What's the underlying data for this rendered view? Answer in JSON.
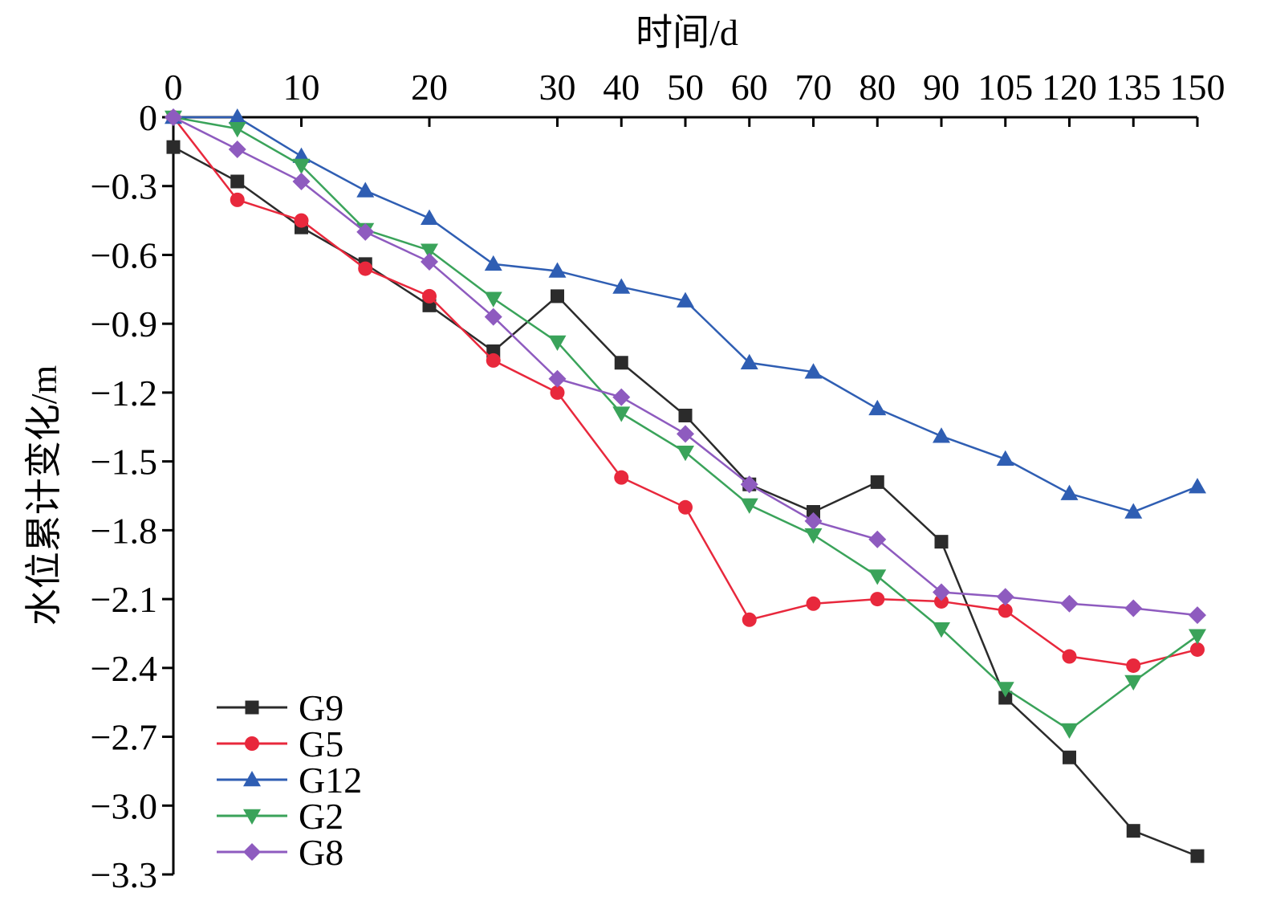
{
  "chart_data": {
    "type": "line",
    "xlabel": "时间/d",
    "ylabel": "水位累计变化/m",
    "x_tick_labels": [
      "0",
      "10",
      "20",
      "30",
      "40",
      "50",
      "60",
      "70",
      "80",
      "90",
      "105",
      "120",
      "135",
      "150"
    ],
    "y_tick_labels": [
      "0",
      "−0.3",
      "−0.6",
      "−0.9",
      "−1.2",
      "−1.5",
      "−1.8",
      "−2.1",
      "−2.4",
      "−2.7",
      "−3.0",
      "−3.3"
    ],
    "y_ticks": [
      0,
      -0.3,
      -0.6,
      -0.9,
      -1.2,
      -1.5,
      -1.8,
      -2.1,
      -2.4,
      -2.7,
      -3.0,
      -3.3
    ],
    "ylim": [
      -3.3,
      0
    ],
    "x_positions": [
      0,
      1,
      2,
      3,
      4,
      5,
      6,
      7,
      8,
      9,
      10,
      11,
      12,
      13,
      14,
      15,
      16
    ],
    "x_index_range": [
      0,
      16
    ],
    "x_tick_index": [
      0,
      2,
      4,
      6,
      7,
      8,
      9,
      10,
      11,
      12,
      13,
      14,
      15,
      16
    ],
    "legend_position": "bottom-left",
    "series": [
      {
        "name": "G9",
        "color": "#2b2b2b",
        "marker": "square",
        "values": [
          -0.13,
          -0.28,
          -0.48,
          -0.64,
          -0.82,
          -1.02,
          -0.78,
          -1.07,
          -1.3,
          -1.6,
          -1.72,
          -1.59,
          -1.85,
          -2.53,
          -2.79,
          -3.11,
          -3.22
        ]
      },
      {
        "name": "G5",
        "color": "#e8283c",
        "marker": "circle",
        "values": [
          0,
          -0.36,
          -0.45,
          -0.66,
          -0.78,
          -1.06,
          -1.2,
          -1.57,
          -1.7,
          -2.19,
          -2.12,
          -2.1,
          -2.11,
          -2.15,
          -2.35,
          -2.39,
          -2.32
        ]
      },
      {
        "name": "G12",
        "color": "#2f5eb3",
        "marker": "triangle-up",
        "values": [
          0,
          0,
          -0.17,
          -0.32,
          -0.44,
          -0.64,
          -0.67,
          -0.74,
          -0.8,
          -1.07,
          -1.11,
          -1.27,
          -1.39,
          -1.49,
          -1.64,
          -1.72,
          -1.61
        ]
      },
      {
        "name": "G2",
        "color": "#3aa35a",
        "marker": "triangle-down",
        "values": [
          0,
          -0.05,
          -0.21,
          -0.49,
          -0.58,
          -0.79,
          -0.98,
          -1.29,
          -1.46,
          -1.69,
          -1.82,
          -2.0,
          -2.23,
          -2.49,
          -2.67,
          -2.46,
          -2.26
        ]
      },
      {
        "name": "G8",
        "color": "#8e5bbf",
        "marker": "diamond",
        "values": [
          0,
          -0.14,
          -0.28,
          -0.5,
          -0.63,
          -0.87,
          -1.14,
          -1.22,
          -1.38,
          -1.6,
          -1.76,
          -1.84,
          -2.07,
          -2.09,
          -2.12,
          -2.14,
          -2.17
        ]
      }
    ]
  }
}
